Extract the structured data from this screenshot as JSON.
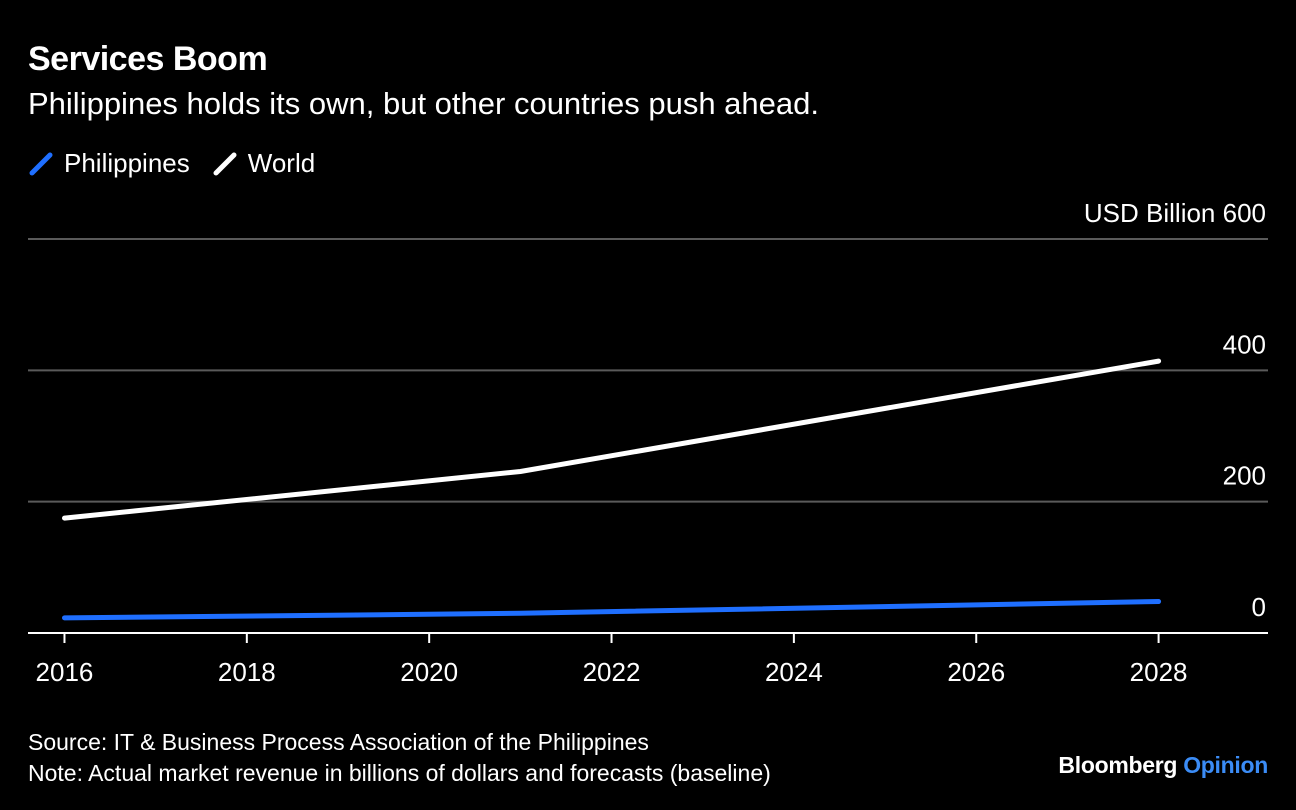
{
  "header": {
    "title": "Services Boom",
    "subtitle": "Philippines holds its own, but other countries push ahead."
  },
  "footer": {
    "source": "Source: IT & Business Process Association of the Philippines",
    "note": "Note: Actual market revenue in billions of dollars and forecasts (baseline)"
  },
  "brand": {
    "name": "Bloomberg",
    "suffix": "Opinion"
  },
  "colors": {
    "background": "#000000",
    "philippines": "#1f6fff",
    "world": "#ffffff",
    "grid": "#5a5a5a",
    "opinion_accent": "#3b8cf6"
  },
  "chart_data": {
    "type": "line",
    "title": "Services Boom",
    "subtitle": "Philippines holds its own, but other countries push ahead.",
    "ylabel": "USD Billion",
    "xlabel": "",
    "ylim": [
      0,
      600
    ],
    "xlim": [
      2015.6,
      2029.2
    ],
    "y_ticks": [
      0,
      200,
      400,
      600
    ],
    "y_tick_labels": [
      "0",
      "200",
      "400",
      "USD Billion 600"
    ],
    "x_ticks": [
      2016,
      2018,
      2020,
      2022,
      2024,
      2026,
      2028
    ],
    "x_tick_labels": [
      "2016",
      "2018",
      "2020",
      "2022",
      "2024",
      "2026",
      "2028"
    ],
    "legend_position": "top-left",
    "grid": true,
    "series": [
      {
        "name": "Philippines",
        "color": "#1f6fff",
        "x": [
          2016,
          2021,
          2028
        ],
        "y": [
          23,
          30,
          48
        ]
      },
      {
        "name": "World",
        "color": "#ffffff",
        "x": [
          2016,
          2021,
          2028
        ],
        "y": [
          175,
          246,
          414
        ]
      }
    ]
  }
}
